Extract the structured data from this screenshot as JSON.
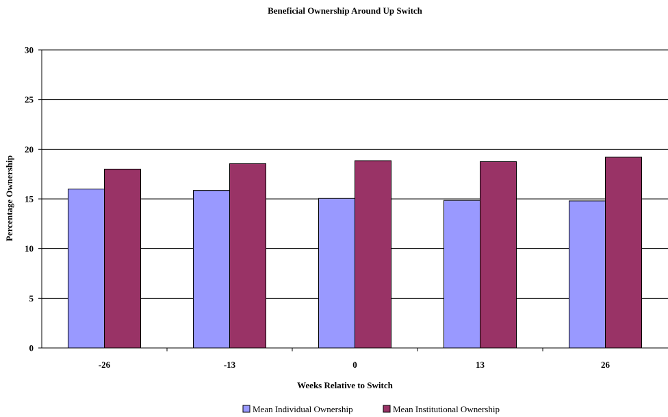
{
  "chart_data": {
    "type": "bar",
    "title": "Beneficial Ownership Around Up Switch",
    "xlabel": "Weeks Relative to Switch",
    "ylabel": "Percentage Ownership",
    "categories": [
      "-26",
      "-13",
      "0",
      "13",
      "26"
    ],
    "ylim": [
      0,
      30
    ],
    "yticks": [
      0,
      5,
      10,
      15,
      20,
      25,
      30
    ],
    "grid": true,
    "legend_position": "bottom",
    "series": [
      {
        "name": "Mean Individual Ownership",
        "color": "#9999FF",
        "values": [
          16.0,
          15.85,
          15.05,
          14.85,
          14.8
        ]
      },
      {
        "name": "Mean Institutional Ownership",
        "color": "#993366",
        "values": [
          18.0,
          18.55,
          18.85,
          18.75,
          19.2
        ]
      }
    ]
  }
}
